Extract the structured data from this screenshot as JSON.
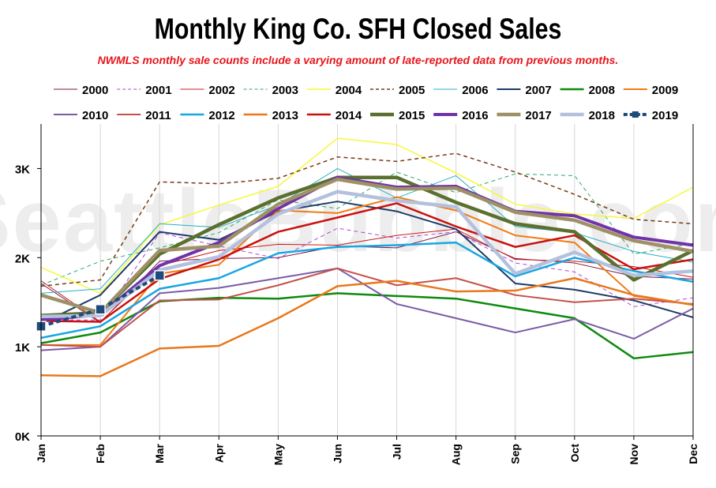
{
  "chart_data": {
    "type": "line",
    "title": "Monthly King Co. SFH Closed Sales",
    "subtitle": "NWMLS monthly sale counts include a varying amount of late-reported  data from previous months.",
    "watermark": "SeattleBubble.com",
    "categories": [
      "Jan",
      "Feb",
      "Mar",
      "Apr",
      "May",
      "Jun",
      "Jul",
      "Aug",
      "Sep",
      "Oct",
      "Nov",
      "Dec"
    ],
    "ylim": [
      0,
      3500
    ],
    "yticks": [
      0,
      1000,
      2000,
      3000
    ],
    "ytick_labels": [
      "0K",
      "1K",
      "2K",
      "3K"
    ],
    "grid": "vertical",
    "legend_placement": "top",
    "series": [
      {
        "name": "2000",
        "color": "#7b1545",
        "style": "solid",
        "width": 1,
        "values": [
          1710,
          1270,
          1960,
          1990,
          2000,
          2130,
          2110,
          2290,
          1990,
          1940,
          1790,
          1760
        ]
      },
      {
        "name": "2001",
        "color": "#b542d6",
        "style": "dashed",
        "width": 1,
        "values": [
          1300,
          1300,
          2280,
          2130,
          1990,
          2330,
          2220,
          2290,
          1940,
          1840,
          1450,
          1550
        ]
      },
      {
        "name": "2002",
        "color": "#cc1b1b",
        "style": "solid",
        "width": 1,
        "values": [
          1740,
          1280,
          1910,
          2080,
          2150,
          2140,
          2250,
          2320,
          1980,
          1960,
          1900,
          1780
        ]
      },
      {
        "name": "2003",
        "color": "#2fa86d",
        "style": "dashed",
        "width": 1,
        "values": [
          1690,
          1960,
          2110,
          2280,
          2650,
          2550,
          2960,
          2730,
          2940,
          2920,
          2040,
          2160
        ]
      },
      {
        "name": "2004",
        "color": "#f7f73c",
        "style": "solid",
        "width": 1.5,
        "values": [
          1890,
          1600,
          2370,
          2590,
          2800,
          3340,
          3270,
          2950,
          2600,
          2490,
          2440,
          2790
        ]
      },
      {
        "name": "2005",
        "color": "#7a3a14",
        "style": "dashed",
        "width": 1.5,
        "values": [
          1680,
          1750,
          2850,
          2830,
          2890,
          3130,
          3080,
          3170,
          2960,
          2710,
          2430,
          2380
        ]
      },
      {
        "name": "2006",
        "color": "#27b0c7",
        "style": "solid",
        "width": 1,
        "values": [
          1600,
          1650,
          2380,
          2340,
          2590,
          3000,
          2670,
          2920,
          2350,
          2280,
          2070,
          1950
        ]
      },
      {
        "name": "2007",
        "color": "#1e3a68",
        "style": "solid",
        "width": 2,
        "values": [
          1260,
          1580,
          2290,
          2200,
          2520,
          2630,
          2520,
          2320,
          1710,
          1640,
          1520,
          1330
        ]
      },
      {
        "name": "2008",
        "color": "#0e8a0e",
        "style": "solid",
        "width": 2.5,
        "values": [
          1040,
          1160,
          1510,
          1550,
          1540,
          1600,
          1570,
          1540,
          1430,
          1320,
          870,
          940
        ]
      },
      {
        "name": "2009",
        "color": "#f07b14",
        "style": "solid",
        "width": 2,
        "values": [
          1020,
          1020,
          1820,
          1920,
          2530,
          2500,
          2680,
          2530,
          2250,
          2170,
          1570,
          1470
        ]
      },
      {
        "name": "2010",
        "color": "#7a5ca5",
        "style": "solid",
        "width": 2,
        "values": [
          960,
          1000,
          1600,
          1660,
          1770,
          1880,
          1480,
          1320,
          1160,
          1310,
          1090,
          1430
        ]
      },
      {
        "name": "2011",
        "color": "#c5504c",
        "style": "solid",
        "width": 2,
        "values": [
          1020,
          1000,
          1520,
          1530,
          1690,
          1880,
          1690,
          1770,
          1580,
          1500,
          1540,
          1480
        ]
      },
      {
        "name": "2012",
        "color": "#18a6e0",
        "style": "solid",
        "width": 2.5,
        "values": [
          1100,
          1230,
          1650,
          1770,
          2050,
          2120,
          2140,
          2170,
          1790,
          2000,
          1850,
          1730
        ]
      },
      {
        "name": "2013",
        "color": "#e8781c",
        "style": "solid",
        "width": 2.5,
        "values": [
          680,
          670,
          980,
          1010,
          1320,
          1680,
          1740,
          1620,
          1630,
          1770,
          1580,
          1470
        ]
      },
      {
        "name": "2014",
        "color": "#c8120e",
        "style": "solid",
        "width": 2.5,
        "values": [
          1290,
          1280,
          1760,
          1980,
          2290,
          2450,
          2610,
          2350,
          2120,
          2250,
          1870,
          1980
        ]
      },
      {
        "name": "2015",
        "color": "#5b6f2e",
        "style": "solid",
        "width": 4.5,
        "values": [
          1350,
          1380,
          2040,
          2370,
          2670,
          2900,
          2900,
          2620,
          2380,
          2290,
          1750,
          2080
        ]
      },
      {
        "name": "2016",
        "color": "#7133a8",
        "style": "solid",
        "width": 4,
        "values": [
          1300,
          1360,
          1910,
          2170,
          2550,
          2900,
          2790,
          2800,
          2520,
          2470,
          2230,
          2140
        ]
      },
      {
        "name": "2017",
        "color": "#9e9166",
        "style": "solid",
        "width": 4.5,
        "values": [
          1580,
          1380,
          2080,
          2130,
          2600,
          2880,
          2770,
          2780,
          2510,
          2420,
          2190,
          2070
        ]
      },
      {
        "name": "2018",
        "color": "#b3c1de",
        "style": "solid",
        "width": 4.5,
        "values": [
          1340,
          1350,
          1860,
          2010,
          2490,
          2740,
          2640,
          2570,
          1820,
          2060,
          1800,
          1850
        ]
      },
      {
        "name": "2019",
        "color": "#1f4a7a",
        "style": "dashed-markers",
        "width": 4,
        "values": [
          1230,
          1420,
          1800,
          null,
          null,
          null,
          null,
          null,
          null,
          null,
          null,
          null
        ]
      }
    ]
  }
}
